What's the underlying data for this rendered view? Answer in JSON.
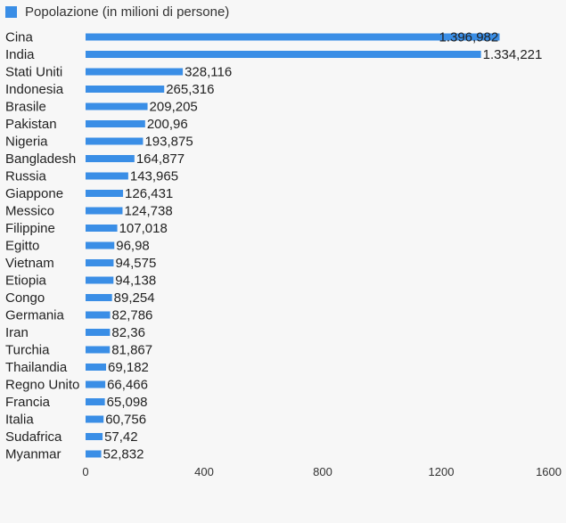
{
  "chart_data": {
    "type": "bar",
    "orientation": "horizontal",
    "legend": {
      "label": "Popolazione (in milioni di persone)",
      "position": "top-left",
      "color": "#3a8ee6"
    },
    "bar_color": "#3a8ee6",
    "categories": [
      "Cina",
      "India",
      "Stati Uniti",
      "Indonesia",
      "Brasile",
      "Pakistan",
      "Nigeria",
      "Bangladesh",
      "Russia",
      "Giappone",
      "Messico",
      "Filippine",
      "Egitto",
      "Vietnam",
      "Etiopia",
      "Congo",
      "Germania",
      "Iran",
      "Turchia",
      "Thailandia",
      "Regno Unito",
      "Francia",
      "Italia",
      "Sudafrica",
      "Myanmar"
    ],
    "values": [
      1396.982,
      1334.221,
      328.116,
      265.316,
      209.205,
      200.96,
      193.875,
      164.877,
      143.965,
      126.431,
      124.738,
      107.018,
      96.98,
      94.575,
      94.138,
      89.254,
      82.786,
      82.36,
      81.867,
      69.182,
      66.466,
      65.098,
      60.756,
      57.42,
      52.832
    ],
    "value_labels": [
      "1.396,982",
      "1.334,221",
      "328,116",
      "265,316",
      "209,205",
      "200,96",
      "193,875",
      "164,877",
      "143,965",
      "126,431",
      "124,738",
      "107,018",
      "96,98",
      "94,575",
      "94,138",
      "89,254",
      "82,786",
      "82,36",
      "81,867",
      "69,182",
      "66,466",
      "65,098",
      "60,756",
      "57,42",
      "52,832"
    ],
    "xlim": [
      0,
      1600
    ],
    "x_ticks": [
      0,
      400,
      800,
      1200,
      1600
    ],
    "x_tick_labels": [
      "0",
      "400",
      "800",
      "1200",
      "1600"
    ],
    "grid": false
  }
}
